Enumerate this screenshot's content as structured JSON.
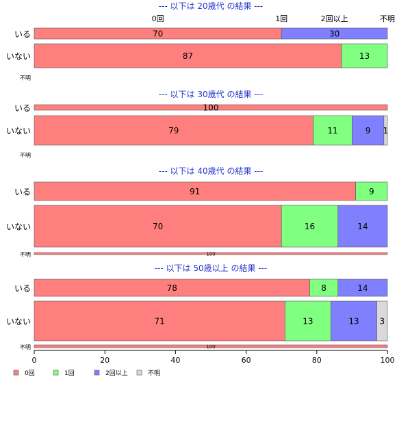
{
  "chart_data": {
    "type": "bar",
    "orientation": "horizontal",
    "stacked": true,
    "percent": true,
    "xlim": [
      0,
      100
    ],
    "x_ticks": [
      0,
      20,
      40,
      60,
      80,
      100
    ],
    "grid": false,
    "legend_position": "bottom-left",
    "category_order": [
      "0回",
      "1回",
      "2回以上",
      "不明"
    ],
    "category_colors": {
      "0回": "#ff7f7f",
      "1回": "#80ff80",
      "2回以上": "#8080ff",
      "不明": "#d9d9d9"
    },
    "legend": [
      {
        "name": "0回",
        "color": "#ff7f7f"
      },
      {
        "name": "1回",
        "color": "#80ff80"
      },
      {
        "name": "2回以上",
        "color": "#8080ff"
      },
      {
        "name": "不明",
        "color": "#d9d9d9"
      }
    ],
    "top_category_labels": [
      "0回",
      "1回",
      "2回以上",
      "不明"
    ],
    "panels": [
      {
        "title": "--- 以下は 20歳代 の結果 ---",
        "rows": [
          {
            "label": "いる",
            "segments": [
              {
                "category": "0回",
                "value": 70
              },
              {
                "category": "2回以上",
                "value": 30
              }
            ]
          },
          {
            "label": "いない",
            "segments": [
              {
                "category": "0回",
                "value": 87
              },
              {
                "category": "1回",
                "value": 13
              }
            ]
          },
          {
            "label": "不明",
            "segments": []
          }
        ]
      },
      {
        "title": "--- 以下は 30歳代 の結果 ---",
        "rows": [
          {
            "label": "いる",
            "segments": [
              {
                "category": "0回",
                "value": 100
              }
            ]
          },
          {
            "label": "いない",
            "segments": [
              {
                "category": "0回",
                "value": 79
              },
              {
                "category": "1回",
                "value": 11
              },
              {
                "category": "2回以上",
                "value": 9
              },
              {
                "category": "不明",
                "value": 1
              }
            ]
          },
          {
            "label": "不明",
            "segments": []
          }
        ]
      },
      {
        "title": "--- 以下は 40歳代 の結果 ---",
        "rows": [
          {
            "label": "いる",
            "segments": [
              {
                "category": "0回",
                "value": 91
              },
              {
                "category": "1回",
                "value": 9
              }
            ]
          },
          {
            "label": "いない",
            "segments": [
              {
                "category": "0回",
                "value": 70
              },
              {
                "category": "1回",
                "value": 16
              },
              {
                "category": "2回以上",
                "value": 14
              }
            ]
          },
          {
            "label": "不明",
            "segments": [
              {
                "category": "0回",
                "value": 100
              }
            ]
          }
        ]
      },
      {
        "title": "--- 以下は 50歳以上 の結果 ---",
        "rows": [
          {
            "label": "いる",
            "segments": [
              {
                "category": "0回",
                "value": 78
              },
              {
                "category": "1回",
                "value": 8
              },
              {
                "category": "2回以上",
                "value": 14
              }
            ]
          },
          {
            "label": "いない",
            "segments": [
              {
                "category": "0回",
                "value": 71
              },
              {
                "category": "1回",
                "value": 13
              },
              {
                "category": "2回以上",
                "value": 13
              },
              {
                "category": "不明",
                "value": 3
              }
            ]
          },
          {
            "label": "不明",
            "segments": [
              {
                "category": "0回",
                "value": 100
              }
            ]
          }
        ]
      }
    ]
  }
}
